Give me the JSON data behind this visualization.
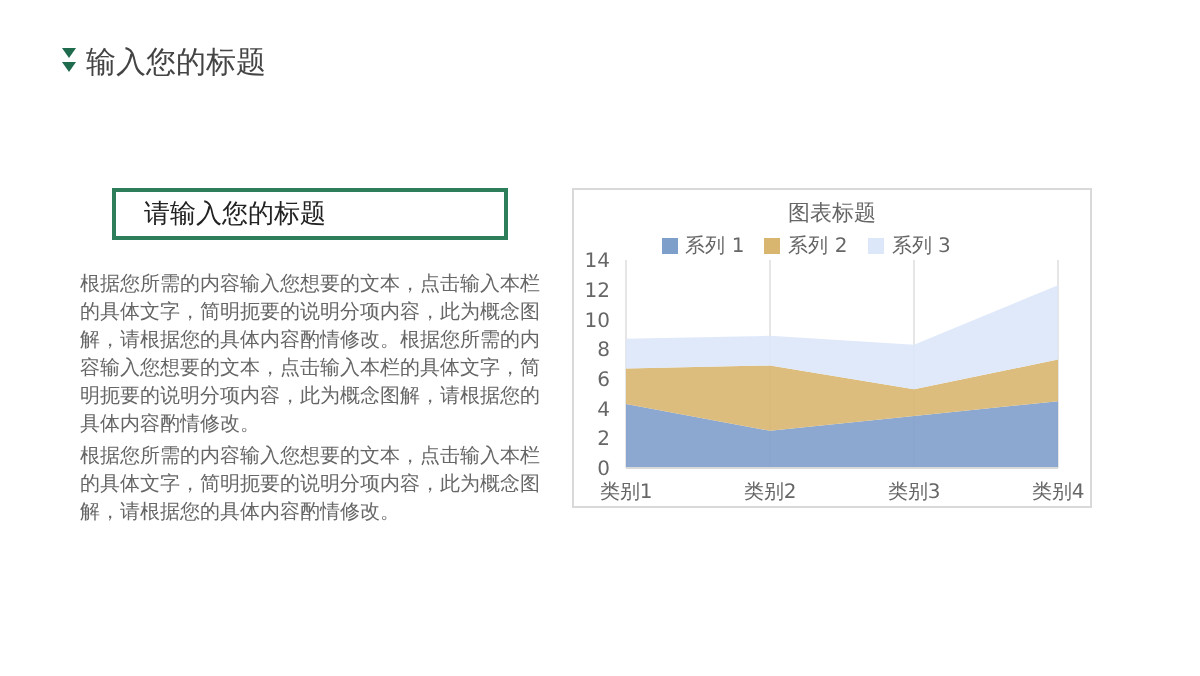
{
  "chart_data": {
    "type": "area",
    "title": "图表标题",
    "categories": [
      "类别1",
      "类别2",
      "类别3",
      "类别4"
    ],
    "stacked": true,
    "series": [
      {
        "name": "系列 1",
        "color": "#7f9fcb",
        "values": [
          4.3,
          2.5,
          3.5,
          4.5
        ]
      },
      {
        "name": "系列 2",
        "color": "#d9b66f",
        "values": [
          2.4,
          4.4,
          1.8,
          2.8
        ]
      },
      {
        "name": "系列 3",
        "color": "#dce7fa",
        "values": [
          2,
          2,
          3,
          5
        ]
      }
    ],
    "ylim": [
      0,
      14
    ],
    "yticks": [
      0,
      2,
      4,
      6,
      8,
      10,
      12,
      14
    ],
    "grid": "x",
    "legend": "top",
    "annotations": [
      "输入您的标题",
      "请输入您的标题",
      "根据您所需的内容输入您想要的文本，点击输入本栏的具体文字，简明扼要的说明分项内容，此为概念图解，请根据您的具体内容酌情修改。根据您所需的内容输入您想要的文本，点击输入本栏的具体文字，简明扼要的说明分项内容，此为概念图解，请根据您的具体内容酌情修改。",
      "根据您所需的内容输入您想要的文本，点击输入本栏的具体文字，简明扼要的说明分项内容，此为概念图解，请根据您的具体内容酌情修改。"
    ]
  }
}
